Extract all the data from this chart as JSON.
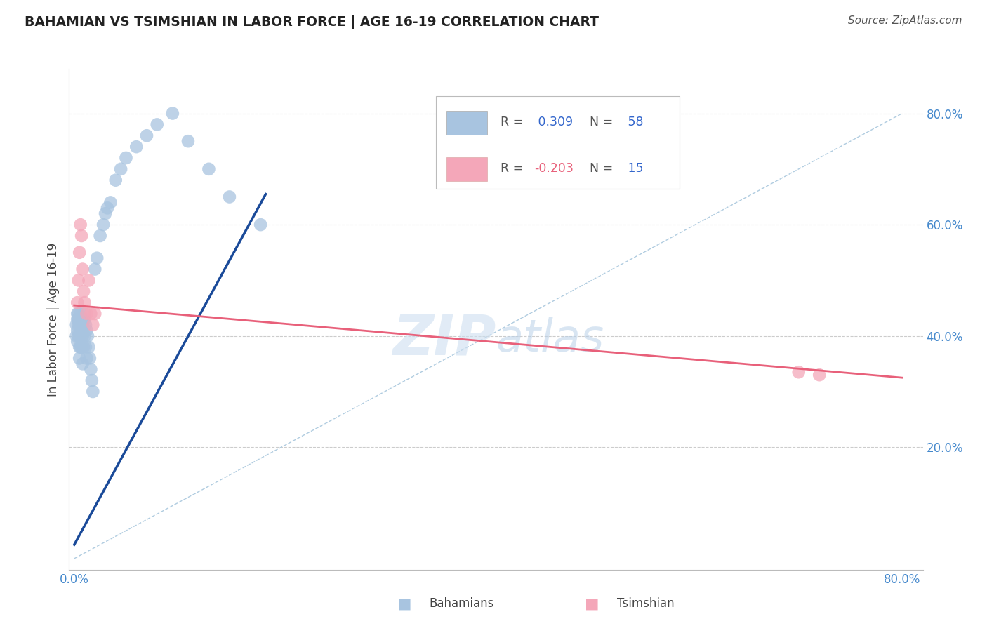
{
  "title": "BAHAMIAN VS TSIMSHIAN IN LABOR FORCE | AGE 16-19 CORRELATION CHART",
  "source": "Source: ZipAtlas.com",
  "ylabel": "In Labor Force | Age 16-19",
  "xlim": [
    -0.005,
    0.82
  ],
  "ylim": [
    -0.02,
    0.88
  ],
  "blue_R": 0.309,
  "blue_N": 58,
  "pink_R": -0.203,
  "pink_N": 15,
  "blue_color": "#a8c4e0",
  "pink_color": "#f4a7b9",
  "blue_line_color": "#1a4a99",
  "pink_line_color": "#e8607a",
  "diag_line_color": "#b0cce0",
  "grid_color": "#cccccc",
  "title_color": "#222222",
  "source_color": "#555555",
  "axis_label_color": "#4488cc",
  "bahamian_x": [
    0.002,
    0.002,
    0.003,
    0.003,
    0.003,
    0.003,
    0.004,
    0.004,
    0.004,
    0.004,
    0.005,
    0.005,
    0.005,
    0.005,
    0.005,
    0.006,
    0.006,
    0.006,
    0.006,
    0.007,
    0.007,
    0.007,
    0.008,
    0.008,
    0.008,
    0.009,
    0.009,
    0.01,
    0.01,
    0.01,
    0.011,
    0.011,
    0.012,
    0.012,
    0.013,
    0.014,
    0.015,
    0.016,
    0.017,
    0.018,
    0.02,
    0.022,
    0.025,
    0.028,
    0.03,
    0.032,
    0.035,
    0.04,
    0.045,
    0.05,
    0.06,
    0.07,
    0.08,
    0.095,
    0.11,
    0.13,
    0.15,
    0.18
  ],
  "bahamian_y": [
    0.42,
    0.4,
    0.44,
    0.43,
    0.41,
    0.39,
    0.44,
    0.43,
    0.42,
    0.4,
    0.43,
    0.42,
    0.4,
    0.38,
    0.36,
    0.44,
    0.43,
    0.41,
    0.38,
    0.43,
    0.41,
    0.38,
    0.42,
    0.4,
    0.35,
    0.43,
    0.38,
    0.44,
    0.43,
    0.4,
    0.42,
    0.38,
    0.41,
    0.36,
    0.4,
    0.38,
    0.36,
    0.34,
    0.32,
    0.3,
    0.52,
    0.54,
    0.58,
    0.6,
    0.62,
    0.63,
    0.64,
    0.68,
    0.7,
    0.72,
    0.74,
    0.76,
    0.78,
    0.8,
    0.75,
    0.7,
    0.65,
    0.6
  ],
  "tsimshian_x": [
    0.003,
    0.004,
    0.005,
    0.006,
    0.007,
    0.008,
    0.009,
    0.01,
    0.012,
    0.014,
    0.016,
    0.018,
    0.02,
    0.7,
    0.72
  ],
  "tsimshian_y": [
    0.46,
    0.5,
    0.55,
    0.6,
    0.58,
    0.52,
    0.48,
    0.46,
    0.44,
    0.5,
    0.44,
    0.42,
    0.44,
    0.335,
    0.33
  ],
  "blue_trendline_x": [
    0.0,
    0.185
  ],
  "blue_trendline_y": [
    0.025,
    0.655
  ],
  "pink_trendline_x": [
    0.0,
    0.8
  ],
  "pink_trendline_y": [
    0.455,
    0.325
  ],
  "diag_line_x": [
    0.0,
    0.8
  ],
  "diag_line_y": [
    0.0,
    0.8
  ],
  "xticks": [
    0.0,
    0.2,
    0.4,
    0.6,
    0.8
  ],
  "yticks": [
    0.0,
    0.2,
    0.4,
    0.6,
    0.8
  ],
  "watermark_zip": "ZIP",
  "watermark_atlas": "atlas"
}
